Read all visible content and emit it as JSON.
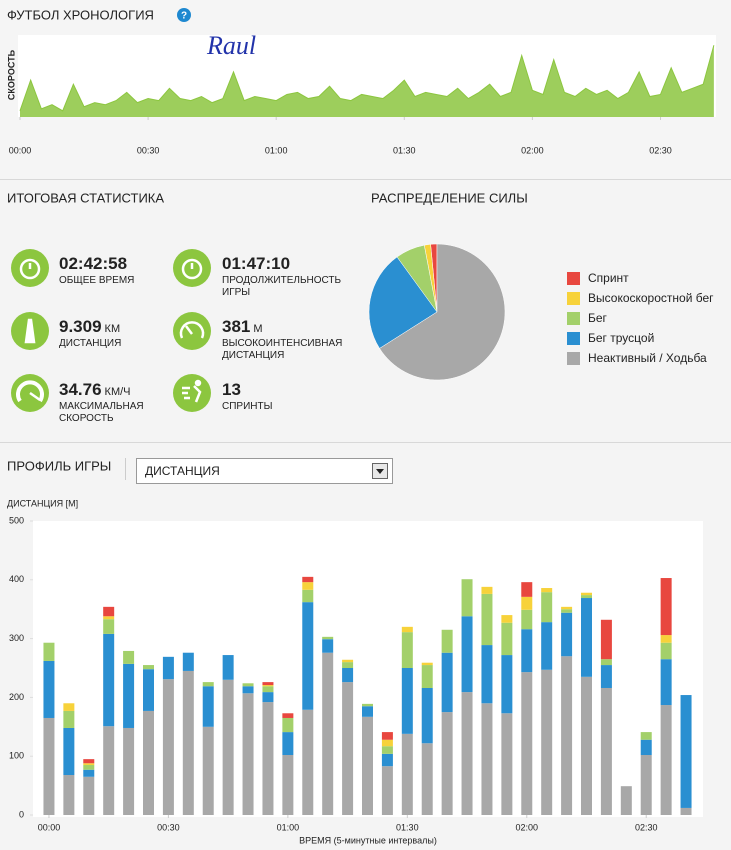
{
  "help": "?",
  "summary": {
    "title": "ИТОГОВАЯ СТАТИСТИКА",
    "items": [
      {
        "value": "02:42:58",
        "label": "ОБЩЕЕ ВРЕМЯ"
      },
      {
        "value": "01:47:10",
        "label": "ПРОДОЛЖИТЕЛЬНОСТЬ ИГРЫ"
      },
      {
        "value": "9.309",
        "unit": "КМ",
        "label": "ДИСТАНЦИЯ"
      },
      {
        "value": "381",
        "unit": "М",
        "label": "ВЫСОКОИНТЕНСИВНАЯ ДИСТАНЦИЯ"
      },
      {
        "value": "34.76",
        "unit": "КМ/Ч",
        "label": "МАКСИМАЛЬНАЯ СКОРОСТЬ"
      },
      {
        "value": "13",
        "label": "СПРИНТЫ"
      }
    ]
  },
  "dropdown": "ДИСТАНЦИЯ",
  "chart_data": [
    {
      "type": "area",
      "title": "ФУТБОЛ ХРОНОЛОГИЯ",
      "ylabel": "СКОРОСТЬ",
      "annotation": "Raul",
      "color": "#8cc63f",
      "x": [
        0,
        2.5,
        5,
        7.5,
        10,
        12.5,
        15,
        17.5,
        20,
        22.5,
        25,
        27.5,
        30,
        32.5,
        35,
        37.5,
        40,
        42.5,
        45,
        47.5,
        50,
        52.5,
        55,
        57.5,
        60,
        62.5,
        65,
        67.5,
        70,
        72.5,
        75,
        77.5,
        80,
        82.5,
        85,
        87.5,
        90,
        92.5,
        95,
        97.5,
        100,
        102.5,
        105,
        107.5,
        110,
        112.5,
        115,
        117.5,
        120,
        122.5,
        125,
        127.5,
        130,
        132.5,
        135,
        137.5,
        140,
        142.5,
        145,
        147.5,
        150,
        152.5,
        155,
        157.5,
        160,
        162.5
      ],
      "values": [
        3,
        18,
        4,
        6,
        3,
        16,
        5,
        7,
        6,
        8,
        12,
        7,
        9,
        8,
        14,
        9,
        8,
        10,
        7,
        9,
        22,
        8,
        10,
        9,
        8,
        11,
        12,
        9,
        10,
        15,
        9,
        8,
        11,
        10,
        9,
        13,
        18,
        10,
        12,
        11,
        10,
        14,
        9,
        12,
        16,
        10,
        12,
        30,
        13,
        11,
        28,
        12,
        10,
        14,
        11,
        13,
        9,
        12,
        22,
        10,
        11,
        24,
        12,
        14,
        16,
        35
      ],
      "xlim": [
        0,
        163
      ],
      "ylim": [
        0,
        40
      ],
      "xticks": [
        {
          "value": 0,
          "label": "00:00"
        },
        {
          "value": 30,
          "label": "00:30"
        },
        {
          "value": 60,
          "label": "01:00"
        },
        {
          "value": 90,
          "label": "01:30"
        },
        {
          "value": 120,
          "label": "02:00"
        },
        {
          "value": 150,
          "label": "02:30"
        }
      ]
    },
    {
      "type": "pie",
      "title": "РАСПРЕДЕЛЕНИЕ СИЛЫ",
      "categories": [
        "Спринт",
        "Высокоскоростной бег",
        "Бег",
        "Бег трусцой",
        "Неактивный / Ходьба"
      ],
      "values": [
        1.5,
        1.5,
        7,
        24,
        66
      ],
      "colors": [
        "#e8473f",
        "#f7d23a",
        "#a3d06a",
        "#2a8fd1",
        "#a8a8a8"
      ]
    },
    {
      "type": "bar",
      "stacked": true,
      "title": "ПРОФИЛЬ ИГРЫ",
      "ylabel": "ДИСТАНЦИЯ [М]",
      "xlabel": "ВРЕМЯ (5-минутные интервалы)",
      "categories": [
        "00:00",
        null,
        null,
        null,
        null,
        null,
        "00:30",
        null,
        null,
        null,
        null,
        null,
        "01:00",
        null,
        null,
        null,
        null,
        null,
        "01:30",
        null,
        null,
        null,
        null,
        null,
        "02:00",
        null,
        null,
        null,
        null,
        null,
        "02:30",
        null,
        null
      ],
      "series": [
        {
          "name": "Неактивный / Ходьба",
          "color": "#a8a8a8",
          "values": [
            165,
            68,
            65,
            151,
            148,
            177,
            231,
            245,
            150,
            230,
            207,
            192,
            102,
            179,
            276,
            226,
            167,
            83,
            138,
            122,
            175,
            209,
            190,
            173,
            243,
            247,
            270,
            235,
            216,
            49,
            102,
            187,
            12
          ]
        },
        {
          "name": "Бег трусцой",
          "color": "#2a8fd1",
          "values": [
            97,
            80,
            12,
            157,
            109,
            71,
            38,
            31,
            69,
            42,
            12,
            17,
            39,
            183,
            23,
            24,
            18,
            21,
            112,
            94,
            101,
            129,
            99,
            99,
            73,
            81,
            74,
            134,
            39,
            0,
            26,
            78,
            192
          ]
        },
        {
          "name": "Бег",
          "color": "#a3d06a",
          "values": [
            31,
            29,
            8,
            25,
            22,
            7,
            0,
            0,
            7,
            0,
            5,
            10,
            24,
            21,
            4,
            10,
            4,
            13,
            61,
            39,
            39,
            63,
            87,
            55,
            33,
            51,
            6,
            5,
            10,
            0,
            13,
            28,
            0
          ]
        },
        {
          "name": "Высокоскоростной бег",
          "color": "#f7d23a",
          "values": [
            0,
            13,
            3,
            5,
            0,
            0,
            0,
            0,
            0,
            0,
            0,
            2,
            0,
            13,
            0,
            4,
            0,
            11,
            9,
            4,
            0,
            0,
            12,
            13,
            22,
            7,
            4,
            4,
            0,
            0,
            0,
            13,
            0
          ]
        },
        {
          "name": "Спринт",
          "color": "#e8473f",
          "values": [
            0,
            0,
            7,
            16,
            0,
            0,
            0,
            0,
            0,
            0,
            0,
            5,
            8,
            9,
            0,
            0,
            0,
            13,
            0,
            0,
            0,
            0,
            0,
            0,
            25,
            0,
            0,
            0,
            67,
            0,
            0,
            97,
            0
          ]
        }
      ],
      "ylim": [
        0,
        500
      ],
      "yticks": [
        0,
        100,
        200,
        300,
        400,
        500
      ],
      "grid": false
    }
  ]
}
